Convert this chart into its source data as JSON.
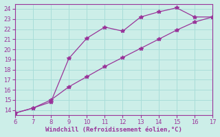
{
  "line1_x": [
    6,
    7,
    8,
    9,
    10,
    11,
    12,
    13,
    14,
    15,
    16,
    17
  ],
  "line1_y": [
    13.7,
    14.2,
    14.8,
    19.1,
    21.1,
    22.2,
    21.8,
    23.2,
    23.7,
    24.1,
    23.2,
    23.2
  ],
  "line2_x": [
    6,
    7,
    8,
    9,
    10,
    11,
    12,
    13,
    14,
    15,
    16,
    17
  ],
  "line2_y": [
    13.7,
    14.2,
    15.0,
    16.3,
    17.3,
    18.3,
    19.2,
    20.1,
    21.0,
    21.9,
    22.7,
    23.2
  ],
  "line_color": "#993399",
  "marker": "*",
  "marker_size": 4,
  "xlim": [
    6,
    17
  ],
  "ylim": [
    13.5,
    24.5
  ],
  "xticks": [
    6,
    7,
    8,
    9,
    10,
    11,
    12,
    13,
    14,
    15,
    16,
    17
  ],
  "yticks": [
    14,
    15,
    16,
    17,
    18,
    19,
    20,
    21,
    22,
    23,
    24
  ],
  "xlabel": "Windchill (Refroidissement éolien,°C)",
  "bg_color": "#cceee8",
  "grid_color": "#a8ddd8",
  "tick_color": "#993399",
  "label_color": "#993399",
  "spine_color": "#993399"
}
